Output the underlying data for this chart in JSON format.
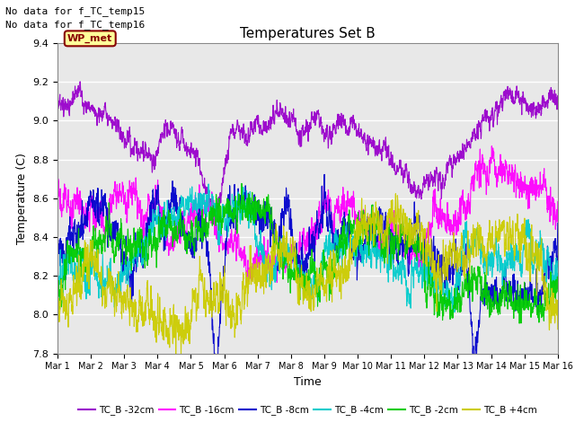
{
  "title": "Temperatures Set B",
  "xlabel": "Time",
  "ylabel": "Temperature (C)",
  "ylim": [
    7.8,
    9.4
  ],
  "text_no_data": [
    "No data for f_TC_temp15",
    "No data for f_TC_temp16"
  ],
  "wp_met_label": "WP_met",
  "wp_met_color": "#880000",
  "wp_met_bg": "#ffff99",
  "x_ticks": [
    "Mar 1",
    "Mar 2",
    "Mar 3",
    "Mar 4",
    "Mar 5",
    "Mar 6",
    "Mar 7",
    "Mar 8",
    "Mar 9",
    "Mar 10",
    "Mar 11",
    "Mar 12",
    "Mar 13",
    "Mar 14",
    "Mar 15",
    "Mar 16"
  ],
  "series": [
    {
      "label": "TC_B -32cm",
      "color": "#9900cc",
      "base": 8.93,
      "noise_scale": 0.035,
      "rw_scale": 0.008
    },
    {
      "label": "TC_B -16cm",
      "color": "#ff00ff",
      "base": 8.5,
      "noise_scale": 0.06,
      "rw_scale": 0.012
    },
    {
      "label": "TC_B -8cm",
      "color": "#0000cc",
      "base": 8.35,
      "noise_scale": 0.07,
      "rw_scale": 0.015
    },
    {
      "label": "TC_B -4cm",
      "color": "#00cccc",
      "base": 8.32,
      "noise_scale": 0.065,
      "rw_scale": 0.013
    },
    {
      "label": "TC_B -2cm",
      "color": "#00cc00",
      "base": 8.3,
      "noise_scale": 0.065,
      "rw_scale": 0.013
    },
    {
      "label": "TC_B +4cm",
      "color": "#cccc00",
      "base": 8.22,
      "noise_scale": 0.08,
      "rw_scale": 0.018
    }
  ],
  "n_points": 2880,
  "background_color": "#e8e8e8",
  "grid_color": "white",
  "seed": 12345
}
